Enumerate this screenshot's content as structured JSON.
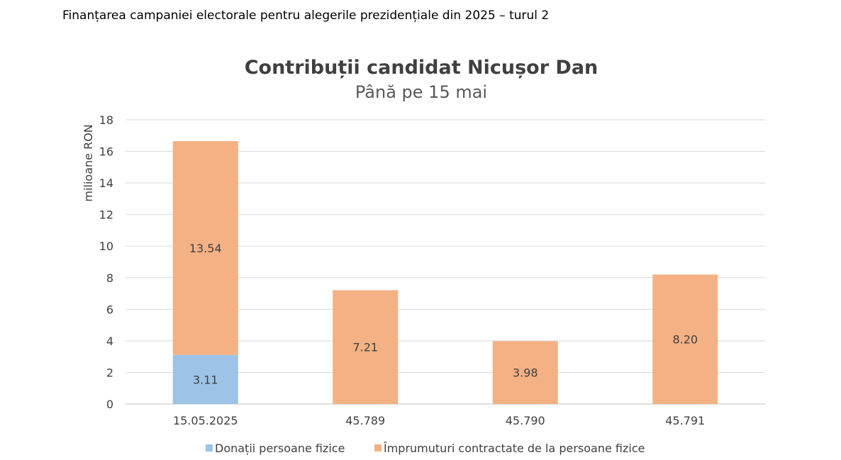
{
  "page_title": "Finanțarea campaniei electorale pentru alegerile prezidențiale din 2025 – turul 2",
  "chart_data": {
    "type": "bar",
    "stacked": true,
    "title": "Contribuții candidat Nicușor Dan",
    "subtitle": "Până pe 15 mai",
    "ylabel": "milioane RON",
    "xlabel": "",
    "ylim": [
      0,
      18
    ],
    "yticks": [
      0,
      2,
      4,
      6,
      8,
      10,
      12,
      14,
      16,
      18
    ],
    "grid": true,
    "legend_position": "bottom",
    "categories": [
      "15.05.2025",
      "45.789",
      "45.790",
      "45.791"
    ],
    "series": [
      {
        "name": "Donații persoane fizice",
        "color": "#9DC3E6",
        "values": [
          3.11,
          null,
          null,
          null
        ],
        "labels": [
          "3.11",
          "",
          "",
          ""
        ]
      },
      {
        "name": "Împrumuturi contractate de la persoane fizice",
        "color": "#F4B183",
        "values": [
          13.54,
          7.21,
          3.98,
          8.2
        ],
        "labels": [
          "13.54",
          "7.21",
          "3.98",
          "8.20"
        ]
      }
    ]
  }
}
